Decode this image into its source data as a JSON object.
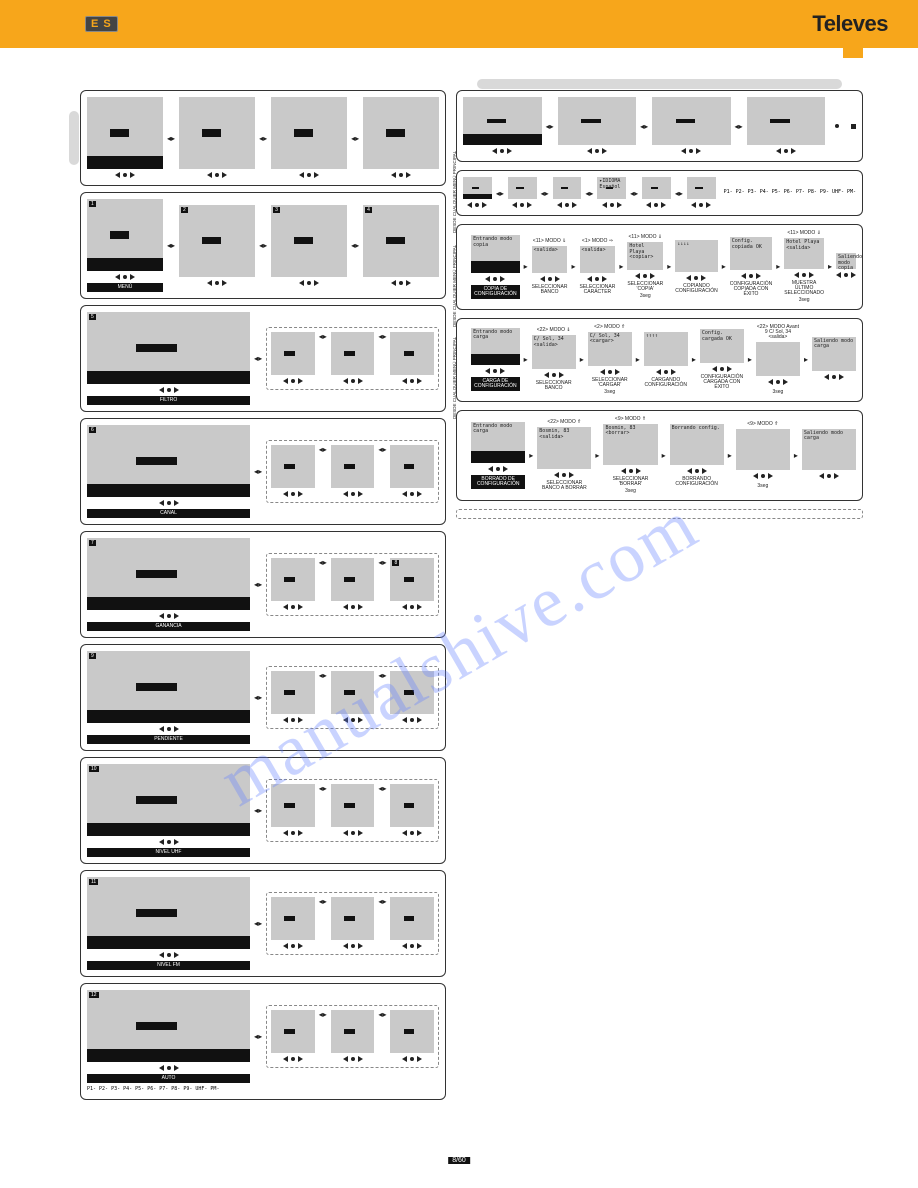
{
  "colors": {
    "header_bg": "#f7a61b",
    "screen_bg": "#c9c9c9",
    "tab_bg": "#d9d9d9",
    "border": "#333333",
    "black": "#111111",
    "watermark": "rgba(100,130,255,0.35)"
  },
  "header": {
    "lang_badge": "E S",
    "brand": "Televes"
  },
  "watermark": "manualshive.com",
  "page_number": "8/60",
  "param_list": "P1- P2-\nP3- P4-\nP5- P6-\nP7- P8-\nP9- UHF- PM-",
  "left": {
    "rows": [
      {
        "count": 4,
        "black_label": "",
        "tab": "side",
        "first_black": true
      },
      {
        "count": 4,
        "black_label": "MENÚ",
        "dashed": false,
        "first_black": true,
        "idx": [
          "1",
          "2",
          "3",
          "4"
        ]
      },
      {
        "count": 4,
        "black_label": "FILTRO",
        "dashed": true,
        "first_black": true,
        "idx": [
          "5",
          "",
          "",
          ""
        ]
      },
      {
        "count": 4,
        "black_label": "CANAL",
        "dashed": true,
        "first_black": true,
        "idx": [
          "6",
          "",
          "",
          ""
        ]
      },
      {
        "count": 4,
        "black_label": "GANANCIA",
        "dashed": true,
        "first_black": true,
        "idx": [
          "7",
          "",
          "",
          "8"
        ]
      },
      {
        "count": 4,
        "black_label": "PENDIENTE",
        "dashed": true,
        "first_black": true,
        "idx": [
          "9",
          "",
          "",
          ""
        ]
      },
      {
        "count": 4,
        "black_label": "NIVEL UHF",
        "dashed": true,
        "first_black": true,
        "idx": [
          "10",
          "",
          "",
          ""
        ]
      },
      {
        "count": 4,
        "black_label": "NIVEL FM",
        "dashed": true,
        "first_black": true,
        "idx": [
          "11",
          "",
          "",
          ""
        ]
      },
      {
        "count": 4,
        "black_label": "AUTO",
        "dashed": true,
        "first_black": true,
        "idx": [
          "12",
          "",
          "",
          ""
        ],
        "has_plist": true
      }
    ]
  },
  "right": {
    "top_rows": [
      {
        "count": 4,
        "first_black": true,
        "tab": "top",
        "size": "sm"
      },
      {
        "count": 6,
        "first_black": true,
        "size": "sm",
        "idioma": true
      }
    ],
    "flows": [
      {
        "steps": [
          {
            "label": "COPIA DE\nCONFIGURACIÓN",
            "sub": "Entrando\nmodo copia",
            "black": true
          },
          {
            "label": "SELECCIONAR\nBANCO",
            "top": "<11> MODO ⇓",
            "sub": "<salida>"
          },
          {
            "label": "SELECCIONAR\nCARÁCTER",
            "top": "<1> MODO ⇒",
            "sub": "<salida>"
          },
          {
            "label": "SELECCIONAR\n'COPIA'",
            "top": "<11> MODO ⇓",
            "sub": "Hotel Playa\n<copiar>",
            "seg": "3seg"
          },
          {
            "label": "COPIANDO\nCONFIGURACIÓN",
            "arrows": "↓↓↓↓"
          },
          {
            "label": "CONFIGURACIÓN\nCOPIADA CON\nÉXITO",
            "sub": "Config.\ncopiada OK"
          },
          {
            "label": "MUESTRA ÚLTIMO\nSELECCIONADO",
            "top": "<11> MODO ⇓",
            "sub": "Hotel Playa\n<salida>",
            "seg": "3seg"
          },
          {
            "label": "",
            "sub": "Saliendo\nmodo copia"
          }
        ],
        "from": "DESDE CUALQUIER MENÚ PRINCIPAL"
      },
      {
        "steps": [
          {
            "label": "CARGA DE\nCONFIGURACIÓN",
            "sub": "Entrando\nmodo carga",
            "black": true
          },
          {
            "label": "SELECCIONAR\nBANCO",
            "top": "<22> MODO ⇓",
            "sub": "C/ Sol, 34\n<salida>"
          },
          {
            "label": "SELECCIONAR\n'CARGAR'",
            "top": "<2> MODO ⇑",
            "sub": "C/ Sol, 34\n<cargar>",
            "seg": "3seg"
          },
          {
            "label": "CARGANDO\nCONFIGURACIÓN",
            "arrows": "↑↑↑↑"
          },
          {
            "label": "CONFIGURACIÓN\nCARGADA CON\nÉXITO",
            "sub": "Config.\ncargada OK"
          },
          {
            "label": "",
            "top": "<22> MODO\nAvant 9\nC/ Sol, 34\n<salida>",
            "seg": "3seg"
          },
          {
            "label": "",
            "sub": "Saliendo\nmodo carga"
          }
        ],
        "from": "DESDE CUALQUIER MENÚ PRINCIPAL"
      },
      {
        "steps": [
          {
            "label": "BORRADO DE\nCONFIGURACIÓN",
            "sub": "Entrando\nmodo carga",
            "black": true
          },
          {
            "label": "SELECCIONAR\nBANCO A BORRAR",
            "top": "<22> MODO ⇑",
            "sub": "Bosmin, 83\n<salida>"
          },
          {
            "label": "SELECCIONAR\n'BORRAR'",
            "top": "<9> MODO ⇑",
            "sub": "Bosmin, 83\n<borrar>",
            "seg": "3seg"
          },
          {
            "label": "BORRANDO\nCONFIGURACIÓN",
            "sub": "Borrando\nconfig."
          },
          {
            "label": "",
            "top": "<9> MODO ⇑",
            "seg": "3seg"
          },
          {
            "label": "",
            "sub": "Saliendo\nmodo carga"
          }
        ],
        "from": "DESDE CUALQUIER MENÚ PRINCIPAL"
      }
    ]
  }
}
